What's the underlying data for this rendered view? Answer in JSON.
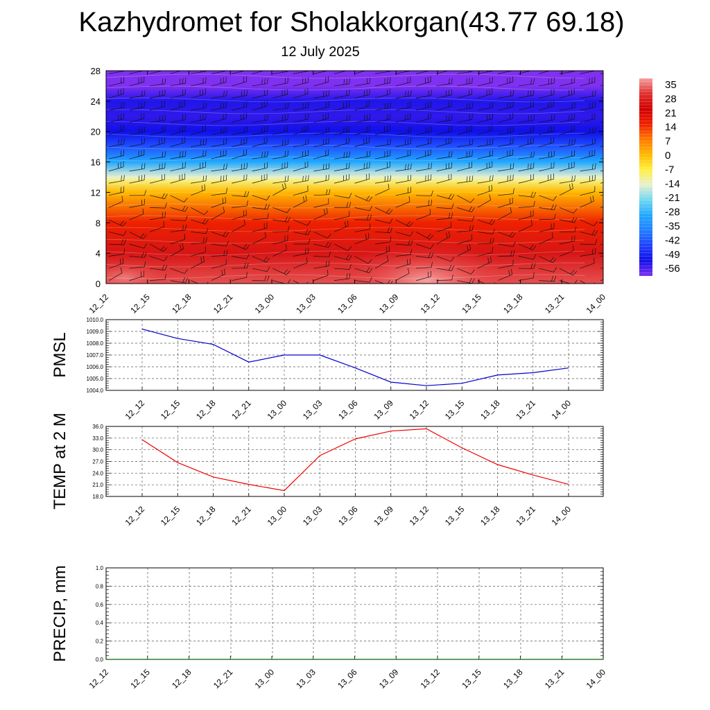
{
  "title": "Kazhydromet for Sholakkorgan(43.77 69.18)",
  "subtitle": "12 July 2025",
  "time_labels": [
    "12_12",
    "12_15",
    "12_18",
    "12_21",
    "13_00",
    "13_03",
    "13_06",
    "13_09",
    "13_12",
    "13_15",
    "13_18",
    "13_21",
    "14_00"
  ],
  "chart_data": [
    {
      "type": "heatmap",
      "title": "",
      "x": [
        "12_12",
        "12_15",
        "12_18",
        "12_21",
        "13_00",
        "13_03",
        "13_06",
        "13_09",
        "13_12",
        "13_15",
        "13_18",
        "13_21",
        "14_00"
      ],
      "ylim": [
        0,
        28
      ],
      "yticks": [
        0,
        4,
        8,
        12,
        16,
        20,
        24,
        28
      ],
      "colorbar": {
        "labels": [
          35,
          28,
          21,
          14,
          7,
          0,
          -7,
          -14,
          -21,
          -28,
          -35,
          -42,
          -49,
          -56
        ],
        "stops": [
          {
            "value": 35,
            "color": "#f5a0a0"
          },
          {
            "value": 28,
            "color": "#e03030"
          },
          {
            "value": 21,
            "color": "#d00000"
          },
          {
            "value": 14,
            "color": "#ee2000"
          },
          {
            "value": 7,
            "color": "#ff7800"
          },
          {
            "value": 0,
            "color": "#ffb800"
          },
          {
            "value": -7,
            "color": "#fff040"
          },
          {
            "value": -14,
            "color": "#e8f0d0"
          },
          {
            "value": -21,
            "color": "#70d8f0"
          },
          {
            "value": -28,
            "color": "#20a8ff"
          },
          {
            "value": -35,
            "color": "#2080ff"
          },
          {
            "value": -42,
            "color": "#2040ff"
          },
          {
            "value": -49,
            "color": "#1010e8"
          },
          {
            "value": -56,
            "color": "#8030f0"
          }
        ]
      },
      "profile": [
        {
          "level": 0,
          "value": 30
        },
        {
          "level": 4,
          "value": 24
        },
        {
          "level": 8,
          "value": 14
        },
        {
          "level": 12,
          "value": 0
        },
        {
          "level": 13.6,
          "value": -10
        },
        {
          "level": 14,
          "value": -14
        },
        {
          "level": 16,
          "value": -28
        },
        {
          "level": 18,
          "value": -40
        },
        {
          "level": 20,
          "value": -49
        },
        {
          "level": 22,
          "value": -51
        },
        {
          "level": 24,
          "value": -50
        },
        {
          "level": 26,
          "value": -56
        },
        {
          "level": 28,
          "value": -62
        }
      ]
    },
    {
      "type": "line",
      "ylabel": "PMSL",
      "ylim": [
        1004.0,
        1010.0
      ],
      "yticks": [
        "1004.0",
        "1005.0",
        "1006.0",
        "1007.0",
        "1008.0",
        "1009.0",
        "1010.0"
      ],
      "x": [
        "12_12",
        "12_15",
        "12_18",
        "12_21",
        "13_00",
        "13_03",
        "13_06",
        "13_09",
        "13_12",
        "13_15",
        "13_18",
        "13_21",
        "14_00"
      ],
      "series": [
        {
          "values": [
            1009.2,
            1008.4,
            1007.9,
            1006.4,
            1007.0,
            1007.0,
            1005.9,
            1004.7,
            1004.4,
            1004.6,
            1005.3,
            1005.5,
            1005.9
          ],
          "color": "#0000cc"
        }
      ]
    },
    {
      "type": "line",
      "ylabel": "TEMP at 2 M",
      "ylim": [
        18.0,
        36.0
      ],
      "yticks": [
        "18.0",
        "21.0",
        "24.0",
        "27.0",
        "30.0",
        "33.0",
        "36.0"
      ],
      "x": [
        "12_12",
        "12_15",
        "12_18",
        "12_21",
        "13_00",
        "13_03",
        "13_06",
        "13_09",
        "13_12",
        "13_15",
        "13_18",
        "13_21",
        "14_00"
      ],
      "series": [
        {
          "values": [
            32.6,
            26.7,
            23.0,
            21.1,
            19.5,
            28.5,
            32.8,
            34.8,
            35.4,
            30.5,
            26.2,
            23.5,
            21.1
          ],
          "color": "#ee0000"
        }
      ]
    },
    {
      "type": "line",
      "ylabel": "PRECIP, mm",
      "ylim": [
        0.0,
        1.0
      ],
      "yticks": [
        "0.0",
        "0.2",
        "0.4",
        "0.6",
        "0.8",
        "1.0"
      ],
      "x": [
        "12_12",
        "12_15",
        "12_18",
        "12_21",
        "13_00",
        "13_03",
        "13_06",
        "13_09",
        "13_12",
        "13_15",
        "13_18",
        "13_21",
        "14_00"
      ],
      "series": [
        {
          "values": [
            0,
            0,
            0,
            0,
            0,
            0,
            0,
            0,
            0,
            0,
            0,
            0,
            0
          ],
          "color": "#006600"
        }
      ]
    }
  ]
}
